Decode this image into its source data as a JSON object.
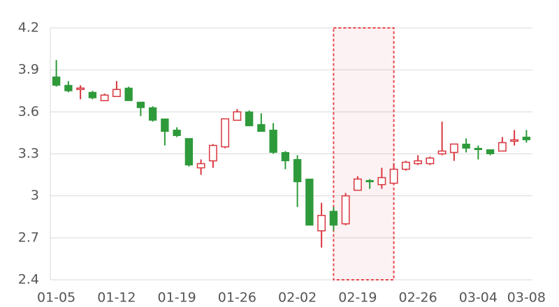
{
  "chart_data": {
    "type": "candlestick",
    "categories": [
      "01-05",
      null,
      null,
      null,
      null,
      "01-12",
      null,
      null,
      null,
      null,
      "01-19",
      null,
      null,
      null,
      null,
      "01-26",
      null,
      null,
      null,
      null,
      "02-02",
      null,
      null,
      null,
      null,
      "02-19",
      null,
      null,
      null,
      null,
      "02-26",
      null,
      null,
      null,
      null,
      "03-04",
      null,
      null,
      null,
      "03-08"
    ],
    "open": [
      3.85,
      3.79,
      3.76,
      3.74,
      3.68,
      3.71,
      3.77,
      3.67,
      3.63,
      3.55,
      3.47,
      3.41,
      3.2,
      3.25,
      3.35,
      3.54,
      3.6,
      3.51,
      3.47,
      3.31,
      3.26,
      3.12,
      2.75,
      2.89,
      2.8,
      3.04,
      3.11,
      3.08,
      3.09,
      3.19,
      3.23,
      3.23,
      3.3,
      3.31,
      3.37,
      3.34,
      3.33,
      3.32,
      3.39,
      3.42
    ],
    "high": [
      3.97,
      3.82,
      3.79,
      3.75,
      3.73,
      3.82,
      3.78,
      3.67,
      3.64,
      3.55,
      3.49,
      3.41,
      3.26,
      3.37,
      3.55,
      3.62,
      3.61,
      3.59,
      3.52,
      3.32,
      3.29,
      3.12,
      2.95,
      2.92,
      3.02,
      3.14,
      3.12,
      3.2,
      3.23,
      3.25,
      3.29,
      3.28,
      3.53,
      3.37,
      3.41,
      3.36,
      3.33,
      3.42,
      3.47,
      3.47
    ],
    "low": [
      3.78,
      3.74,
      3.69,
      3.69,
      3.68,
      3.71,
      3.68,
      3.57,
      3.53,
      3.36,
      3.42,
      3.21,
      3.15,
      3.2,
      3.34,
      3.54,
      3.5,
      3.46,
      3.3,
      3.19,
      2.92,
      2.79,
      2.63,
      2.75,
      2.79,
      3.04,
      3.05,
      3.05,
      3.09,
      3.18,
      3.22,
      3.22,
      3.29,
      3.25,
      3.31,
      3.26,
      3.29,
      3.32,
      3.36,
      3.38
    ],
    "close": [
      3.79,
      3.75,
      3.77,
      3.7,
      3.72,
      3.76,
      3.68,
      3.63,
      3.54,
      3.46,
      3.43,
      3.22,
      3.23,
      3.36,
      3.55,
      3.6,
      3.5,
      3.46,
      3.31,
      3.25,
      3.1,
      2.79,
      2.86,
      2.79,
      3.0,
      3.12,
      3.1,
      3.13,
      3.19,
      3.24,
      3.25,
      3.27,
      3.32,
      3.37,
      3.34,
      3.33,
      3.3,
      3.38,
      3.4,
      3.4
    ],
    "up_color": "#d9363e",
    "down_color": "#2e9a3a",
    "highlight": {
      "from": 23,
      "to": 28,
      "color": "#e8484e"
    },
    "ylim": [
      2.4,
      4.2
    ],
    "yticks": [
      2.4,
      2.7,
      3,
      3.3,
      3.6,
      3.9,
      4.2
    ],
    "grid": true
  }
}
